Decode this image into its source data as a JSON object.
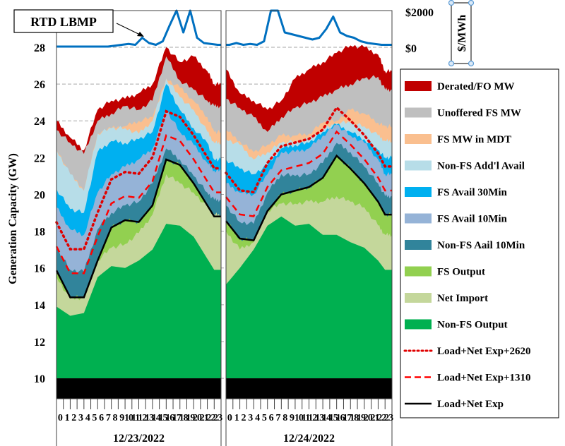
{
  "chart_data": {
    "type": "area",
    "stacked": true,
    "ylabel": "Generation Capacity (GW)",
    "ylim": [
      8.9,
      28
    ],
    "yticks": [
      10,
      12,
      14,
      16,
      18,
      20,
      22,
      24,
      26,
      28
    ],
    "grid": "dashed horizontal",
    "legend_position": "right",
    "price_axis": {
      "callout": "RTD LBMP",
      "unit_label": "$/MWh",
      "tick_labels": [
        "$2000",
        "$0"
      ],
      "range": [
        0,
        2000
      ],
      "color": "#0070c0"
    },
    "hour_labels": [
      "0",
      "1",
      "2",
      "3",
      "4",
      "5",
      "6",
      "7",
      "8",
      "9",
      "10",
      "11",
      "12",
      "13",
      "14",
      "15",
      "16",
      "17",
      "18",
      "19",
      "20",
      "21",
      "22",
      "23"
    ],
    "series": [
      {
        "name": "Non-FS Output",
        "color": "#00b050"
      },
      {
        "name": "Net Import",
        "color": "#c4d79b"
      },
      {
        "name": "FS Output",
        "color": "#92d050"
      },
      {
        "name": "Non-FS Aail 10Min",
        "color": "#31849b"
      },
      {
        "name": "FS Avail 10Min",
        "color": "#95b3d7"
      },
      {
        "name": "FS Avail 30Min",
        "color": "#00b0f0"
      },
      {
        "name": "Non-FS Add'l Avail",
        "color": "#b7dde8"
      },
      {
        "name": "FS MW in MDT",
        "color": "#fabf8f"
      },
      {
        "name": "Unoffered FS MW",
        "color": "#bfbfbf"
      },
      {
        "name": "Derated/FO MW",
        "color": "#c00000"
      }
    ],
    "lines": [
      {
        "name": "Load+Net Exp+2620",
        "offset_gw": 2.62,
        "color": "#e00000",
        "style": "dotted"
      },
      {
        "name": "Load+Net Exp+1310",
        "offset_gw": 1.31,
        "color": "#ff0000",
        "style": "dashed"
      },
      {
        "name": "Load+Net Exp",
        "offset_gw": 0,
        "color": "#000000",
        "style": "solid"
      }
    ],
    "panels": [
      {
        "date": "12/23/2022",
        "hours": [
          0,
          2,
          4,
          6,
          8,
          10,
          12,
          14,
          16,
          18,
          20,
          22,
          23
        ],
        "stack_tops": [
          [
            13.9,
            13.4,
            13.55,
            15.5,
            16.1,
            16.0,
            16.4,
            17.0,
            18.4,
            18.3,
            17.7,
            16.5,
            15.9
          ],
          [
            15.5,
            14.3,
            14.4,
            16.4,
            17.1,
            17.3,
            17.9,
            18.9,
            21.1,
            20.6,
            20.1,
            19.3,
            18.9
          ],
          [
            15.86,
            14.4,
            14.4,
            16.4,
            18.2,
            18.6,
            18.5,
            19.4,
            21.9,
            21.6,
            20.6,
            19.4,
            18.8
          ],
          [
            17.1,
            15.9,
            15.8,
            18.1,
            19.0,
            19.4,
            19.6,
            20.6,
            22.5,
            21.9,
            21.0,
            20.1,
            19.7
          ],
          [
            19.3,
            18.1,
            17.8,
            20.1,
            21.1,
            21.5,
            21.9,
            22.5,
            24.6,
            23.4,
            22.7,
            21.7,
            21.3
          ],
          [
            20.3,
            19.2,
            19.0,
            22.3,
            22.9,
            22.8,
            23.0,
            23.4,
            26.0,
            24.6,
            23.6,
            22.8,
            21.9
          ],
          [
            22.4,
            21.1,
            20.2,
            23.3,
            23.6,
            23.6,
            23.3,
            24.0,
            26.3,
            25.3,
            24.6,
            23.4,
            22.8
          ],
          [
            22.4,
            21.1,
            20.2,
            23.3,
            23.6,
            23.7,
            24.0,
            24.2,
            26.3,
            25.8,
            25.1,
            24.2,
            23.4
          ],
          [
            23.5,
            22.8,
            22.2,
            24.0,
            24.4,
            24.8,
            24.6,
            25.1,
            27.5,
            26.2,
            25.7,
            25.1,
            24.8
          ],
          [
            24.0,
            23.1,
            22.4,
            24.6,
            25.1,
            25.2,
            25.5,
            26.0,
            28.0,
            27.2,
            27.5,
            26.7,
            26.0
          ]
        ],
        "load": [
          15.86,
          14.4,
          14.4,
          16.4,
          18.2,
          18.6,
          18.5,
          19.4,
          21.9,
          21.6,
          20.6,
          19.4,
          18.8
        ],
        "price": [
          0,
          0,
          0,
          0,
          0,
          0,
          0,
          0,
          50,
          100,
          150,
          100,
          500,
          200,
          100,
          300,
          1200,
          2500,
          800,
          2500,
          500,
          200,
          150,
          100
        ]
      },
      {
        "date": "12/24/2022",
        "hours": [
          0,
          2,
          4,
          6,
          8,
          10,
          12,
          14,
          16,
          18,
          20,
          22,
          23
        ],
        "stack_tops": [
          [
            15.1,
            16.0,
            17.0,
            18.3,
            18.8,
            18.3,
            18.4,
            17.8,
            17.8,
            17.4,
            17.1,
            16.4,
            15.9
          ],
          [
            18.0,
            17.0,
            17.4,
            19.1,
            19.5,
            19.5,
            19.6,
            19.6,
            19.9,
            19.6,
            19.3,
            18.3,
            17.8
          ],
          [
            18.55,
            17.6,
            17.5,
            19.1,
            20.0,
            20.2,
            20.4,
            20.9,
            22.1,
            21.4,
            20.6,
            19.6,
            18.9
          ],
          [
            19.4,
            18.5,
            18.4,
            20.1,
            21.1,
            21.0,
            21.1,
            21.7,
            22.8,
            22.3,
            21.5,
            20.6,
            19.9
          ],
          [
            20.6,
            20.1,
            20.0,
            21.1,
            22.3,
            22.3,
            22.5,
            23.2,
            23.8,
            23.2,
            22.8,
            21.9,
            21.1
          ],
          [
            21.9,
            21.4,
            21.1,
            21.6,
            22.5,
            22.7,
            22.8,
            23.4,
            23.8,
            23.4,
            23.0,
            22.4,
            22.0
          ],
          [
            23.0,
            22.7,
            21.9,
            22.3,
            22.8,
            22.9,
            23.0,
            23.5,
            23.9,
            23.9,
            23.7,
            23.2,
            22.9
          ],
          [
            23.5,
            22.9,
            22.3,
            22.7,
            23.2,
            23.2,
            23.3,
            23.9,
            24.0,
            24.6,
            24.4,
            23.9,
            23.7
          ],
          [
            25.2,
            24.7,
            24.2,
            23.4,
            24.2,
            24.7,
            25.0,
            25.3,
            25.7,
            26.0,
            26.3,
            26.4,
            25.7
          ],
          [
            26.8,
            25.5,
            25.1,
            24.6,
            25.1,
            26.3,
            26.8,
            27.2,
            27.7,
            28.1,
            28.0,
            27.6,
            26.7
          ]
        ],
        "load": [
          18.55,
          17.6,
          17.5,
          19.1,
          20.0,
          20.2,
          20.4,
          20.9,
          22.1,
          21.4,
          20.6,
          19.6,
          18.9
        ],
        "price": [
          100,
          200,
          100,
          150,
          100,
          300,
          2500,
          2500,
          800,
          700,
          600,
          500,
          400,
          500,
          1000,
          1700,
          800,
          600,
          500,
          300,
          200,
          150,
          100,
          100
        ]
      }
    ]
  }
}
